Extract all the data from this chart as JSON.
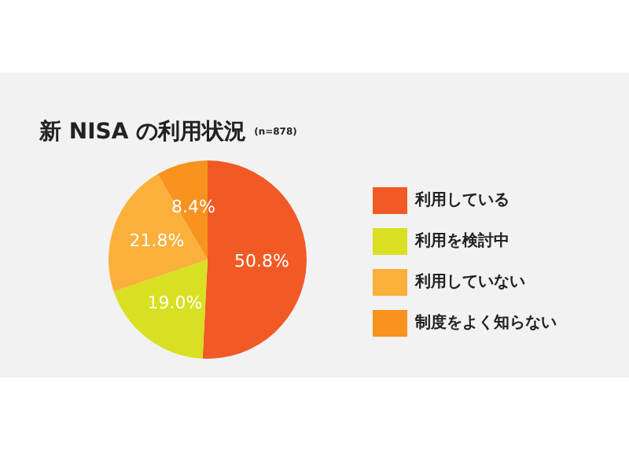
{
  "chart_data": {
    "type": "pie",
    "title": "新 NISA の利用状況",
    "subtitle": "(n=878)",
    "categories": [
      "利用している",
      "利用を検討中",
      "利用していない",
      "制度をよく知らない"
    ],
    "values": [
      50.8,
      19.0,
      21.8,
      8.4
    ],
    "colors": [
      "#f15a24",
      "#d9e021",
      "#fbb03b",
      "#f7931e"
    ],
    "value_labels": [
      "50.8%",
      "19.0%",
      "21.8%",
      "8.4%"
    ],
    "legend": "right"
  }
}
